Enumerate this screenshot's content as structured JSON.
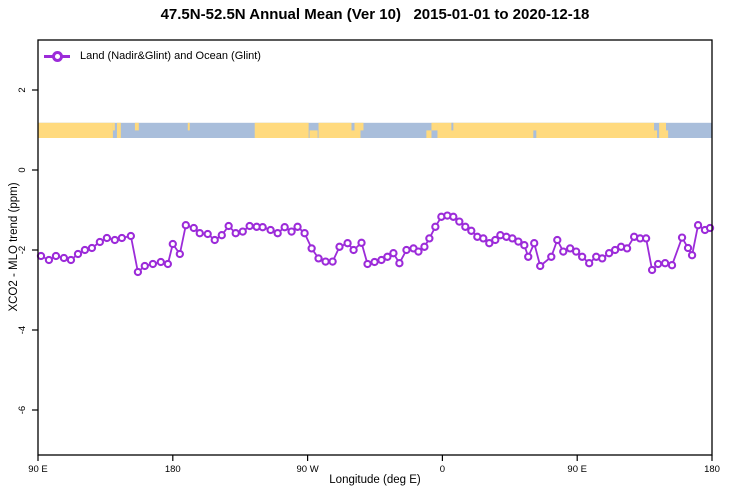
{
  "title": "47.5N-52.5N Annual Mean (Ver 10)   2015-01-01 to 2020-12-18",
  "legend": {
    "label": "Land (Nadir&Glint) and Ocean (Glint)",
    "marker": "open-circle-on-line"
  },
  "colors": {
    "series": "#9C2BD9",
    "land": "#FFDA7E",
    "ocean": "#A9BEDB",
    "frame": "#000000",
    "background": "#FFFFFF",
    "text": "#000000"
  },
  "chart_data": {
    "type": "line",
    "title": "47.5N-52.5N Annual Mean (Ver 10)   2015-01-01 to 2020-12-18",
    "xlabel": "Longitude (deg E)",
    "ylabel": "XCO2 - MLO trend (ppm)",
    "grid": false,
    "legend_position": "top-left-inside",
    "x_axis": {
      "note": "deg = degrees east measured from 90E; axis wraps 90E>180>90W>0>90E>180",
      "range_deg": [
        0,
        450
      ],
      "ticks": [
        {
          "label": "90 E",
          "deg": 0
        },
        {
          "label": "180",
          "deg": 90
        },
        {
          "label": "90 W",
          "deg": 180
        },
        {
          "label": "0",
          "deg": 270
        },
        {
          "label": "90 E",
          "deg": 360
        },
        {
          "label": "180",
          "deg": 450
        }
      ]
    },
    "y_axis": {
      "range": [
        3.25,
        -7.1
      ],
      "ticks": [
        {
          "label": "2",
          "value": 2
        },
        {
          "label": "0",
          "value": 0
        },
        {
          "label": "-2",
          "value": -2
        },
        {
          "label": "-4",
          "value": -4
        },
        {
          "label": "-6",
          "value": -6
        }
      ]
    },
    "map_strip": {
      "description": "47.5N-52.5N latitude band world-map ribbon (land=yellow, ocean=blue)",
      "value_top": 1.18,
      "value_bottom": 0.8,
      "land_segments_deg": [
        [
          0,
          50
        ],
        [
          52.7,
          55.3
        ],
        [
          144.7,
          180.7
        ],
        [
          187.3,
          209.3
        ],
        [
          211.3,
          215.3
        ],
        [
          266.7,
          411.3
        ],
        [
          414.7,
          419.3
        ]
      ],
      "speckles": [
        {
          "d": [
            50,
            51.3
          ],
          "part": "top",
          "c": "land"
        },
        {
          "d": [
            64.7,
            67.3
          ],
          "part": "top",
          "c": "land"
        },
        {
          "d": [
            100,
            101.3
          ],
          "part": "top",
          "c": "land"
        },
        {
          "d": [
            181.3,
            186.7
          ],
          "part": "bottom",
          "c": "land"
        },
        {
          "d": [
            209.3,
            211.3
          ],
          "part": "bottom",
          "c": "land"
        },
        {
          "d": [
            215.3,
            217.3
          ],
          "part": "top",
          "c": "land"
        },
        {
          "d": [
            259.3,
            262.7
          ],
          "part": "bottom",
          "c": "land"
        },
        {
          "d": [
            262.7,
            266.7
          ],
          "part": "top",
          "c": "land"
        },
        {
          "d": [
            276,
            277.3
          ],
          "part": "top",
          "c": "ocean"
        },
        {
          "d": [
            330.7,
            332.7
          ],
          "part": "bottom",
          "c": "ocean"
        },
        {
          "d": [
            411.3,
            413.3
          ],
          "part": "bottom",
          "c": "land"
        },
        {
          "d": [
            419.3,
            420.7
          ],
          "part": "bottom",
          "c": "land"
        }
      ]
    },
    "series": [
      {
        "name": "Land (Nadir&Glint) and Ocean (Glint)",
        "color": "#9C2BD9",
        "marker": "open-circle",
        "points": [
          [
            2.0,
            -2.15
          ],
          [
            7.3,
            -2.25
          ],
          [
            12.0,
            -2.15
          ],
          [
            17.3,
            -2.2
          ],
          [
            22.0,
            -2.25
          ],
          [
            26.7,
            -2.1
          ],
          [
            31.3,
            -2.0
          ],
          [
            36.0,
            -1.95
          ],
          [
            41.3,
            -1.8
          ],
          [
            46.0,
            -1.7
          ],
          [
            51.3,
            -1.75
          ],
          [
            56.0,
            -1.7
          ],
          [
            62.0,
            -1.65
          ],
          [
            66.7,
            -2.55
          ],
          [
            71.3,
            -2.4
          ],
          [
            76.7,
            -2.35
          ],
          [
            82.0,
            -2.3
          ],
          [
            86.7,
            -2.35
          ],
          [
            90.0,
            -1.85
          ],
          [
            94.7,
            -2.1
          ],
          [
            98.7,
            -1.38
          ],
          [
            104.0,
            -1.45
          ],
          [
            108.0,
            -1.58
          ],
          [
            113.3,
            -1.6
          ],
          [
            118.0,
            -1.75
          ],
          [
            122.7,
            -1.63
          ],
          [
            127.3,
            -1.4
          ],
          [
            132.0,
            -1.58
          ],
          [
            136.7,
            -1.54
          ],
          [
            141.3,
            -1.4
          ],
          [
            146.0,
            -1.42
          ],
          [
            150.0,
            -1.43
          ],
          [
            155.3,
            -1.5
          ],
          [
            160.0,
            -1.58
          ],
          [
            164.7,
            -1.43
          ],
          [
            169.3,
            -1.54
          ],
          [
            173.3,
            -1.42
          ],
          [
            178.0,
            -1.58
          ],
          [
            182.7,
            -1.96
          ],
          [
            187.3,
            -2.21
          ],
          [
            192.0,
            -2.29
          ],
          [
            196.7,
            -2.29
          ],
          [
            201.3,
            -1.92
          ],
          [
            206.7,
            -1.83
          ],
          [
            210.7,
            -2.0
          ],
          [
            216.0,
            -1.82
          ],
          [
            220.0,
            -2.35
          ],
          [
            224.7,
            -2.3
          ],
          [
            229.3,
            -2.25
          ],
          [
            233.3,
            -2.17
          ],
          [
            237.3,
            -2.08
          ],
          [
            241.3,
            -2.33
          ],
          [
            246.0,
            -2.0
          ],
          [
            250.7,
            -1.96
          ],
          [
            254.0,
            -2.04
          ],
          [
            258.0,
            -1.92
          ],
          [
            261.3,
            -1.71
          ],
          [
            265.3,
            -1.42
          ],
          [
            269.3,
            -1.17
          ],
          [
            273.3,
            -1.14
          ],
          [
            277.3,
            -1.17
          ],
          [
            281.3,
            -1.29
          ],
          [
            285.3,
            -1.42
          ],
          [
            289.3,
            -1.52
          ],
          [
            293.3,
            -1.67
          ],
          [
            297.3,
            -1.71
          ],
          [
            301.3,
            -1.83
          ],
          [
            305.3,
            -1.75
          ],
          [
            308.7,
            -1.63
          ],
          [
            312.7,
            -1.67
          ],
          [
            316.7,
            -1.71
          ],
          [
            320.7,
            -1.79
          ],
          [
            324.7,
            -1.88
          ],
          [
            327.3,
            -2.17
          ],
          [
            331.3,
            -1.83
          ],
          [
            335.3,
            -2.4
          ],
          [
            342.7,
            -2.17
          ],
          [
            346.7,
            -1.75
          ],
          [
            350.7,
            -2.04
          ],
          [
            355.3,
            -1.96
          ],
          [
            359.3,
            -2.04
          ],
          [
            363.3,
            -2.17
          ],
          [
            368.0,
            -2.33
          ],
          [
            372.7,
            -2.17
          ],
          [
            376.7,
            -2.21
          ],
          [
            381.3,
            -2.08
          ],
          [
            385.3,
            -2.0
          ],
          [
            389.3,
            -1.92
          ],
          [
            393.3,
            -1.96
          ],
          [
            398.0,
            -1.67
          ],
          [
            402.0,
            -1.71
          ],
          [
            406.0,
            -1.71
          ],
          [
            410.0,
            -2.5
          ],
          [
            414.0,
            -2.35
          ],
          [
            418.7,
            -2.33
          ],
          [
            423.3,
            -2.38
          ],
          [
            430.0,
            -1.69
          ],
          [
            434.0,
            -1.95
          ],
          [
            436.7,
            -2.13
          ],
          [
            440.7,
            -1.38
          ],
          [
            445.3,
            -1.5
          ],
          [
            448.7,
            -1.45
          ]
        ]
      }
    ]
  }
}
